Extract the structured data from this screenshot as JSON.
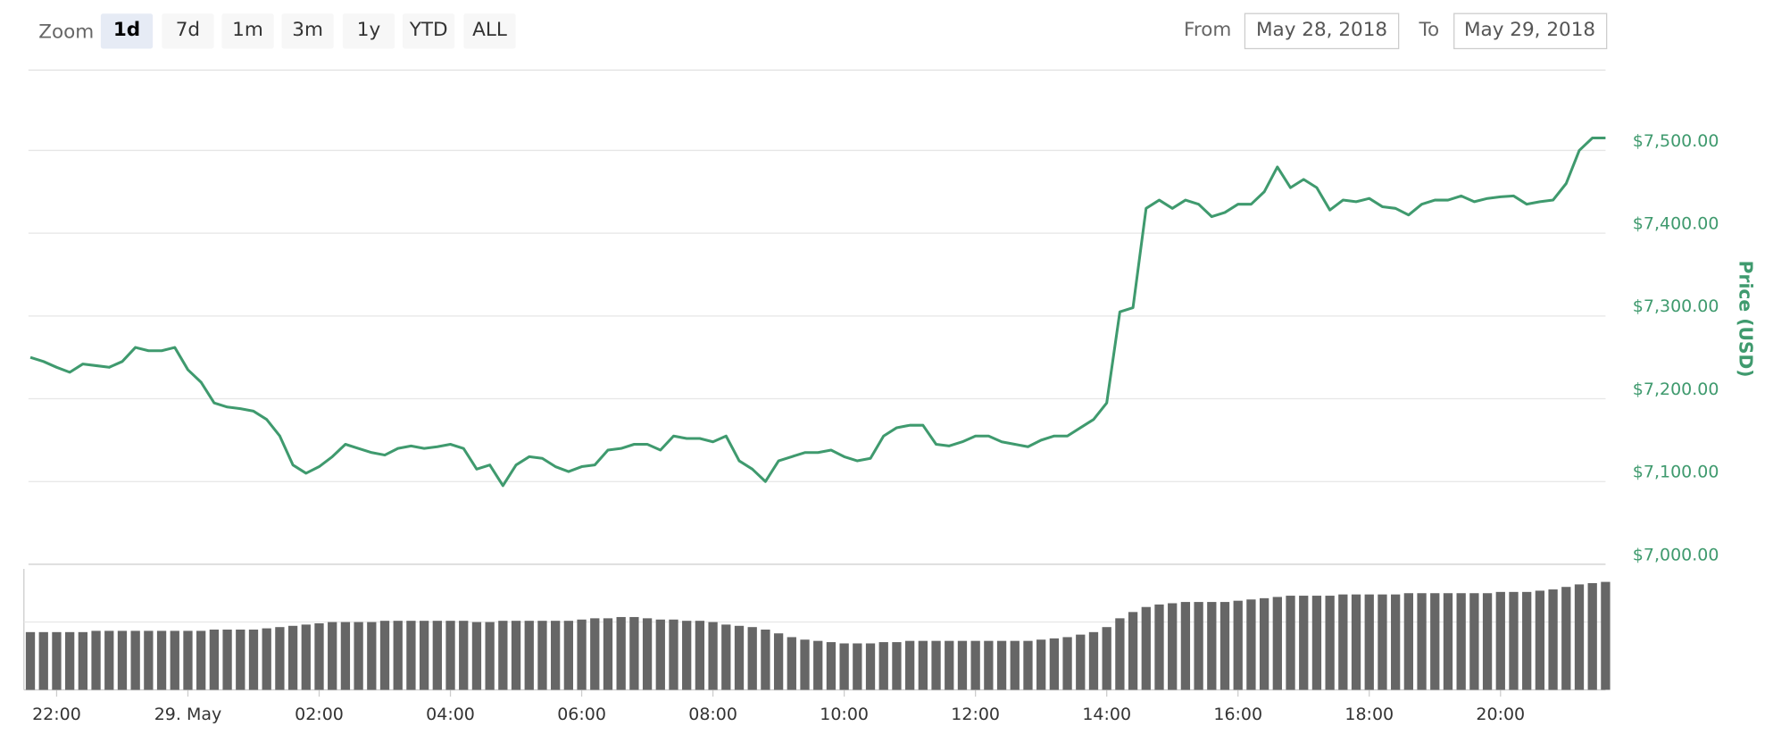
{
  "ui": {
    "zoom_label": "Zoom",
    "zoom_buttons": [
      "1d",
      "7d",
      "1m",
      "3m",
      "1y",
      "YTD",
      "ALL"
    ],
    "selected_zoom": 0,
    "from_label": "From",
    "from_date": "May 28, 2018",
    "to_label": "To",
    "to_date": "May 29, 2018"
  },
  "chart_data": {
    "type": "line",
    "y_label": "Price (USD)",
    "color": "#3f9a6e",
    "xlim": [
      -2.43,
      21.6
    ],
    "xticks": [
      {
        "value": -2,
        "label": "22:00"
      },
      {
        "value": 0,
        "label": "29. May"
      },
      {
        "value": 2,
        "label": "02:00"
      },
      {
        "value": 4,
        "label": "04:00"
      },
      {
        "value": 6,
        "label": "06:00"
      },
      {
        "value": 8,
        "label": "08:00"
      },
      {
        "value": 10,
        "label": "10:00"
      },
      {
        "value": 12,
        "label": "12:00"
      },
      {
        "value": 14,
        "label": "14:00"
      },
      {
        "value": 16,
        "label": "16:00"
      },
      {
        "value": 18,
        "label": "18:00"
      },
      {
        "value": 20,
        "label": "20:00"
      }
    ],
    "ylim": [
      7000,
      7597
    ],
    "yticks": [
      {
        "value": 7000,
        "label": "$7,000.00"
      },
      {
        "value": 7100,
        "label": "$7,100.00"
      },
      {
        "value": 7200,
        "label": "$7,200.00"
      },
      {
        "value": 7300,
        "label": "$7,300.00"
      },
      {
        "value": 7400,
        "label": "$7,400.00"
      },
      {
        "value": 7500,
        "label": "$7,500.00"
      }
    ],
    "grid": true,
    "x": [
      -2.4,
      -2.2,
      -2.0,
      -1.8,
      -1.6,
      -1.4,
      -1.2,
      -1.0,
      -0.8,
      -0.6,
      -0.4,
      -0.2,
      0.0,
      0.2,
      0.4,
      0.6,
      0.8,
      1.0,
      1.2,
      1.4,
      1.6,
      1.8,
      2.0,
      2.2,
      2.4,
      2.6,
      2.8,
      3.0,
      3.2,
      3.4,
      3.6,
      3.8,
      4.0,
      4.2,
      4.4,
      4.6,
      4.8,
      5.0,
      5.2,
      5.4,
      5.6,
      5.8,
      6.0,
      6.2,
      6.4,
      6.6,
      6.8,
      7.0,
      7.2,
      7.4,
      7.6,
      7.8,
      8.0,
      8.2,
      8.4,
      8.6,
      8.8,
      9.0,
      9.2,
      9.4,
      9.6,
      9.8,
      10.0,
      10.2,
      10.4,
      10.6,
      10.8,
      11.0,
      11.2,
      11.4,
      11.6,
      11.8,
      12.0,
      12.2,
      12.4,
      12.6,
      12.8,
      13.0,
      13.2,
      13.4,
      13.6,
      13.8,
      14.0,
      14.2,
      14.4,
      14.6,
      14.8,
      15.0,
      15.2,
      15.4,
      15.6,
      15.8,
      16.0,
      16.2,
      16.4,
      16.6,
      16.8,
      17.0,
      17.2,
      17.4,
      17.6,
      17.8,
      18.0,
      18.2,
      18.4,
      18.6,
      18.8,
      19.0,
      19.2,
      19.4,
      19.6,
      19.8,
      20.0,
      20.2,
      20.4,
      20.6,
      20.8,
      21.0,
      21.2,
      21.4,
      21.6
    ],
    "values": [
      7250,
      7245,
      7238,
      7232,
      7242,
      7240,
      7238,
      7245,
      7262,
      7258,
      7258,
      7262,
      7235,
      7220,
      7195,
      7190,
      7188,
      7185,
      7175,
      7155,
      7120,
      7110,
      7118,
      7130,
      7145,
      7140,
      7135,
      7132,
      7140,
      7143,
      7140,
      7142,
      7145,
      7140,
      7115,
      7120,
      7095,
      7120,
      7130,
      7128,
      7118,
      7112,
      7118,
      7120,
      7138,
      7140,
      7145,
      7145,
      7138,
      7155,
      7152,
      7152,
      7148,
      7155,
      7125,
      7115,
      7100,
      7125,
      7130,
      7135,
      7135,
      7138,
      7130,
      7125,
      7128,
      7155,
      7165,
      7168,
      7168,
      7145,
      7143,
      7148,
      7155,
      7155,
      7148,
      7145,
      7142,
      7150,
      7155,
      7155,
      7165,
      7175,
      7195,
      7305,
      7310,
      7430,
      7440,
      7430,
      7440,
      7435,
      7420,
      7425,
      7435,
      7435,
      7450,
      7480,
      7455,
      7465,
      7455,
      7428,
      7440,
      7438,
      7442,
      7432,
      7430,
      7422,
      7435,
      7440,
      7440,
      7445,
      7438,
      7442,
      7444,
      7445,
      7435,
      7438,
      7440,
      7460,
      7500,
      7515,
      7515
    ],
    "volume": {
      "type": "bar",
      "color": "#666666",
      "ylim": [
        0,
        100
      ],
      "values": [
        46,
        46,
        46,
        46,
        46,
        47,
        47,
        47,
        47,
        47,
        47,
        47,
        47,
        47,
        48,
        48,
        48,
        48,
        49,
        50,
        51,
        52,
        53,
        54,
        54,
        54,
        54,
        55,
        55,
        55,
        55,
        55,
        55,
        55,
        54,
        54,
        55,
        55,
        55,
        55,
        55,
        55,
        56,
        57,
        57,
        58,
        58,
        57,
        56,
        56,
        55,
        55,
        54,
        52,
        51,
        50,
        48,
        45,
        42,
        40,
        39,
        38,
        37,
        37,
        37,
        38,
        38,
        39,
        39,
        39,
        39,
        39,
        39,
        39,
        39,
        39,
        39,
        40,
        41,
        42,
        44,
        46,
        50,
        57,
        62,
        66,
        68,
        69,
        70,
        70,
        70,
        70,
        71,
        72,
        73,
        74,
        75,
        75,
        75,
        75,
        76,
        76,
        76,
        76,
        76,
        77,
        77,
        77,
        77,
        77,
        77,
        77,
        78,
        78,
        78,
        79,
        80,
        82,
        84,
        85,
        86
      ]
    }
  }
}
